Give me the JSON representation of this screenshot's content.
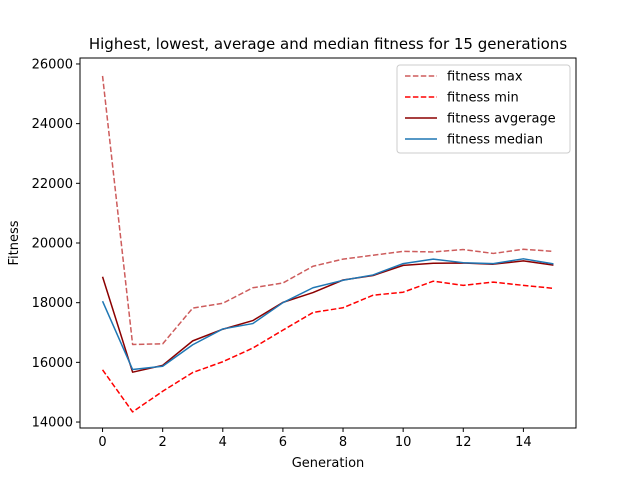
{
  "chart_data": {
    "type": "line",
    "title": "Highest, lowest, average and median fitness for 15 generations",
    "xlabel": "Generation",
    "ylabel": "Fitness",
    "xlim": [
      -0.75,
      15.75
    ],
    "ylim": [
      13800,
      26200
    ],
    "x": [
      0,
      1,
      2,
      3,
      4,
      5,
      6,
      7,
      8,
      9,
      10,
      11,
      12,
      13,
      14,
      15
    ],
    "xticks": [
      0,
      2,
      4,
      6,
      8,
      10,
      12,
      14
    ],
    "xtick_labels": [
      "0",
      "2",
      "4",
      "6",
      "8",
      "10",
      "12",
      "14"
    ],
    "yticks": [
      14000,
      16000,
      18000,
      20000,
      22000,
      24000,
      26000
    ],
    "ytick_labels": [
      "14000",
      "16000",
      "18000",
      "20000",
      "22000",
      "24000",
      "26000"
    ],
    "grid": false,
    "legend_position": "top-right",
    "series": [
      {
        "name": "fitness max",
        "color": "#cd5c5c",
        "style": "dashed",
        "values": [
          25600,
          16600,
          16620,
          17820,
          17980,
          18500,
          18660,
          19220,
          19460,
          19590,
          19720,
          19700,
          19780,
          19650,
          19790,
          19720
        ]
      },
      {
        "name": "fitness min",
        "color": "#ff0000",
        "style": "dashed",
        "values": [
          15750,
          14340,
          15030,
          15660,
          16020,
          16480,
          17080,
          17670,
          17830,
          18250,
          18350,
          18720,
          18580,
          18690,
          18580,
          18480
        ]
      },
      {
        "name": "fitness avgerage",
        "color": "#8b0000",
        "style": "solid",
        "values": [
          18870,
          15670,
          15900,
          16720,
          17110,
          17400,
          18010,
          18340,
          18760,
          18910,
          19250,
          19320,
          19330,
          19290,
          19400,
          19260
        ]
      },
      {
        "name": "fitness median",
        "color": "#1f77b4",
        "style": "solid",
        "values": [
          18050,
          15760,
          15870,
          16590,
          17120,
          17300,
          18000,
          18500,
          18750,
          18930,
          19310,
          19460,
          19340,
          19310,
          19470,
          19300
        ]
      }
    ]
  }
}
